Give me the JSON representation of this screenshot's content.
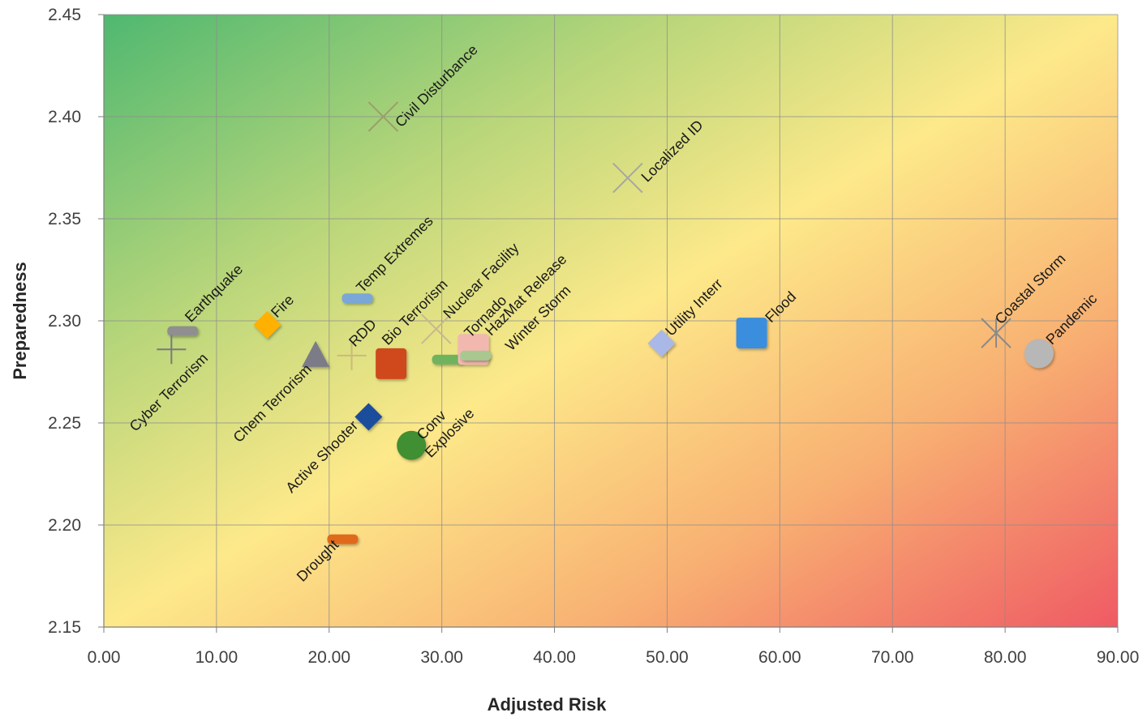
{
  "chart_data": {
    "type": "scatter",
    "xlabel": "Adjusted Risk",
    "ylabel": "Preparedness",
    "xlim": [
      0,
      90
    ],
    "ylim": [
      2.15,
      2.45
    ],
    "x_ticks": [
      "0.00",
      "10.00",
      "20.00",
      "30.00",
      "40.00",
      "50.00",
      "60.00",
      "70.00",
      "80.00",
      "90.00"
    ],
    "y_ticks": [
      "2.15",
      "2.20",
      "2.25",
      "2.30",
      "2.35",
      "2.40",
      "2.45"
    ],
    "grid": true,
    "background": "gradient from green (top-left) through yellow to red (bottom-right)",
    "points": [
      {
        "label": "Civil Disturbance",
        "x": 24.8,
        "y": 2.4,
        "marker": "x",
        "color": "#9aa06a"
      },
      {
        "label": "Localized ID",
        "x": 46.5,
        "y": 2.37,
        "marker": "x",
        "color": "#a7a7a0"
      },
      {
        "label": "Earthquake",
        "x": 7.0,
        "y": 2.295,
        "marker": "dash",
        "color": "#8f8f8f"
      },
      {
        "label": "Cyber Terrorism",
        "x": 6.0,
        "y": 2.286,
        "marker": "plus",
        "color": "#7a7a7a"
      },
      {
        "label": "Fire",
        "x": 14.5,
        "y": 2.298,
        "marker": "diamond",
        "color": "#ffb000"
      },
      {
        "label": "Chem Terrorism",
        "x": 18.8,
        "y": 2.283,
        "marker": "triangle",
        "color": "#7c7c88"
      },
      {
        "label": "Temp Extremes",
        "x": 22.5,
        "y": 2.311,
        "marker": "dash",
        "color": "#7aa6d8"
      },
      {
        "label": "RDD",
        "x": 22.0,
        "y": 2.283,
        "marker": "plus",
        "color": "#c9bb7a"
      },
      {
        "label": "Bio Terrorism",
        "x": 25.5,
        "y": 2.279,
        "marker": "square",
        "color": "#cf4a1a"
      },
      {
        "label": "Nuclear Facility",
        "x": 29.5,
        "y": 2.296,
        "marker": "x",
        "color": "#c8b890"
      },
      {
        "label": "Tornado",
        "x": 30.5,
        "y": 2.281,
        "marker": "dash",
        "color": "#6fb35f"
      },
      {
        "label": "HazMat Release",
        "x": 32.8,
        "y": 2.286,
        "marker": "square",
        "color": "#f2b8b0"
      },
      {
        "label": "Winter Storm",
        "x": 33.0,
        "y": 2.283,
        "marker": "dash",
        "color": "#a8c890"
      },
      {
        "label": "Active Shooter",
        "x": 23.5,
        "y": 2.253,
        "marker": "diamond",
        "color": "#1f4e9c"
      },
      {
        "label": "Conv Explosive",
        "x": 27.3,
        "y": 2.239,
        "marker": "circle",
        "color": "#3f8f32"
      },
      {
        "label": "Drought",
        "x": 21.2,
        "y": 2.193,
        "marker": "dash",
        "color": "#e06a1f"
      },
      {
        "label": "Utility Interr",
        "x": 49.5,
        "y": 2.289,
        "marker": "diamond",
        "color": "#a9b8e6"
      },
      {
        "label": "Flood",
        "x": 57.5,
        "y": 2.294,
        "marker": "square",
        "color": "#3b8ede"
      },
      {
        "label": "Coastal Storm",
        "x": 79.2,
        "y": 2.294,
        "marker": "star",
        "color": "#8a8a8a"
      },
      {
        "label": "Pandemic",
        "x": 83.0,
        "y": 2.284,
        "marker": "circle",
        "color": "#b7b7b7"
      }
    ]
  }
}
